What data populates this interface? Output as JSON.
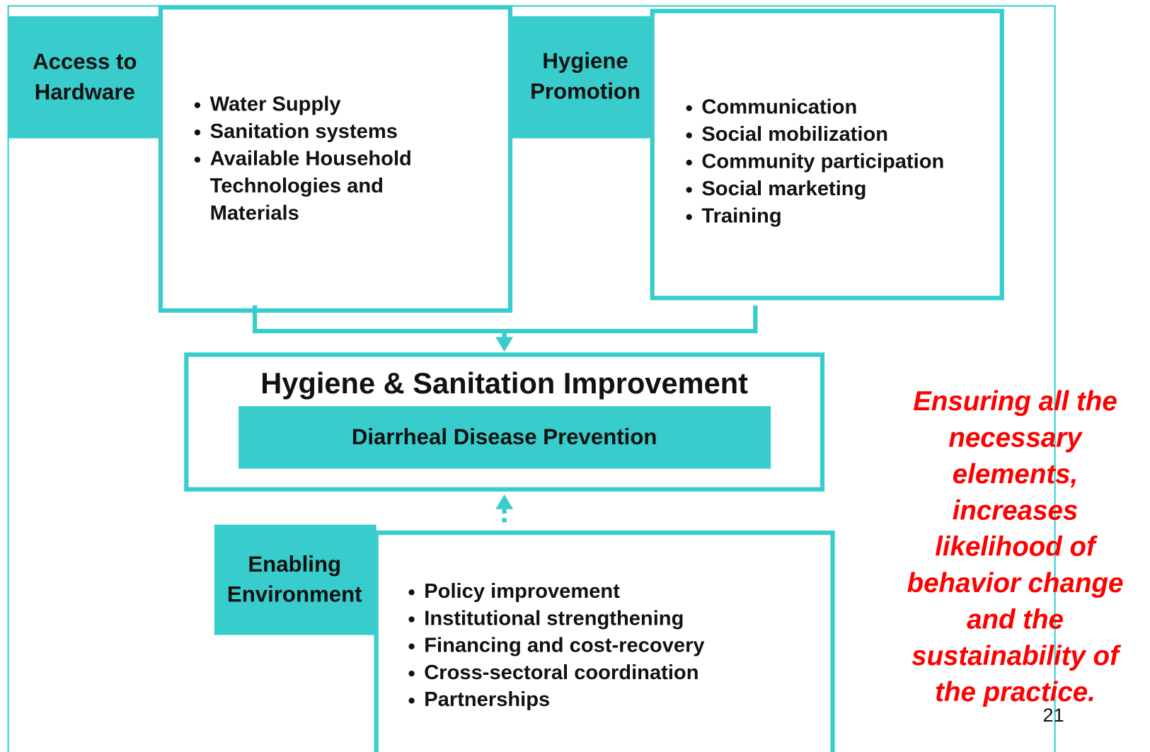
{
  "hardware": {
    "label": [
      "Access to",
      "Hardware"
    ],
    "items": [
      [
        "Water Supply"
      ],
      [
        "Sanitation systems"
      ],
      [
        "Available Household",
        "Technologies and",
        "Materials"
      ]
    ]
  },
  "promotion": {
    "label": [
      "Hygiene",
      "Promotion"
    ],
    "items": [
      [
        "Communication"
      ],
      [
        "Social mobilization"
      ],
      [
        "Community participation"
      ],
      [
        "Social marketing"
      ],
      [
        "Training"
      ]
    ]
  },
  "improvement": {
    "title": "Hygiene & Sanitation Improvement",
    "subtitle": "Diarrheal Disease Prevention"
  },
  "enabling": {
    "label": [
      "Enabling",
      "Environment"
    ],
    "items": [
      [
        "Policy improvement"
      ],
      [
        "Institutional strengthening"
      ],
      [
        "Financing and cost-recovery"
      ],
      [
        "Cross-sectoral coordination"
      ],
      [
        "Partnerships"
      ]
    ]
  },
  "note": [
    "Ensuring all the",
    "necessary",
    "elements,",
    "increases",
    "likelihood of",
    "behavior change",
    "and the",
    "sustainability of",
    "the practice."
  ],
  "page_number": "21"
}
